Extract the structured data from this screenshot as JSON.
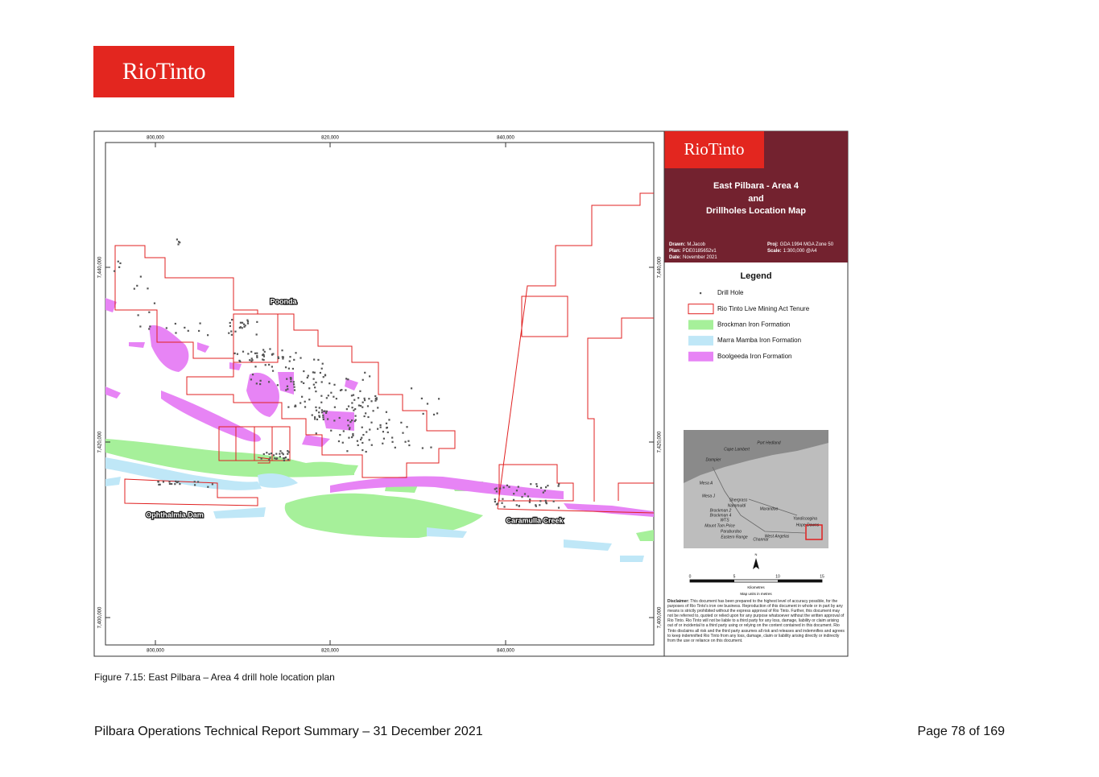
{
  "header": {
    "logo": "RioTinto"
  },
  "figure": {
    "map": {
      "x_labels_top": [
        "800,000",
        "820,000",
        "840,000"
      ],
      "x_labels_bottom": [
        "800,000",
        "820,000",
        "840,000"
      ],
      "y_labels_left": [
        "7,440,000",
        "7,420,000",
        "7,400,000"
      ],
      "y_labels_right": [
        "7,440,000",
        "7,420,000",
        "7,400,000"
      ],
      "places": [
        "Poonda",
        "Ophthalmia Dam",
        "Caramulla Creek"
      ]
    },
    "panel": {
      "logo": "RioTinto",
      "title_lines": [
        "East Pilbara - Area 4",
        "and",
        "Drillholes Location Map"
      ],
      "info": [
        {
          "label": "Drawn:",
          "value": "M.Jacob"
        },
        {
          "label": "Plan:",
          "value": "PDE0185652v1"
        },
        {
          "label": "Date:",
          "value": "November 2021"
        },
        {
          "label": "Proj:",
          "value": "GDA 1994 MGA Zone 50"
        },
        {
          "label": "Scale:",
          "value": "1:300,000 @A4"
        }
      ],
      "legend": {
        "title": "Legend",
        "items": [
          "Drill Hole",
          "Rio Tinto Live Mining Act Tenure",
          "Brockman Iron Formation",
          "Marra Mamba Iron Formation",
          "Boolgeeda Iron Formation"
        ]
      },
      "inset_labels": [
        "Port Hedland",
        "Cape Lambert",
        "Dampier",
        "Mesa A",
        "Mesa J",
        "Shergrass",
        "Nammuldi",
        "Brockman 2",
        "Brockman 4",
        "WTS",
        "Mount Tom Price",
        "Paraburdoo",
        "Eastern Range",
        "Channar",
        "Marandoo",
        "West Angelas",
        "Yandicoogina",
        "Hope Downs"
      ],
      "north": "N",
      "scale_ticks": [
        "0",
        "5",
        "10",
        "15"
      ],
      "scale_unit": "Kilometres",
      "map_units": "Map units in metres",
      "disclaimer_label": "Disclaimer:",
      "disclaimer": "This document has been prepared to the highest level of accuracy possible, for the purposes of Rio Tinto's iron ore business. Reproduction of this document in whole or in part by any means is strictly prohibited without the express approval of Rio Tinto. Further, this document may not be referred to, quoted or relied upon for any purpose whatsoever without the written approval of Rio Tinto. Rio Tinto will not be liable to a third party for any loss, damage, liability or claim arising out of or incidental to a third party using or relying on the content contained in this document. Rio Tinto disclaims all risk and the third party assumes all risk and releases and indemnifies and agrees to keep indemnified Rio Tinto from any loss, damage, claim or liability arising directly or indirectly from the use or reliance on this document."
    },
    "caption": "Figure 7.15: East Pilbara – Area 4 drill hole location plan"
  },
  "footer": {
    "left": "Pilbara Operations Technical Report Summary – 31 December 2021",
    "right": "Page 78 of 169"
  }
}
